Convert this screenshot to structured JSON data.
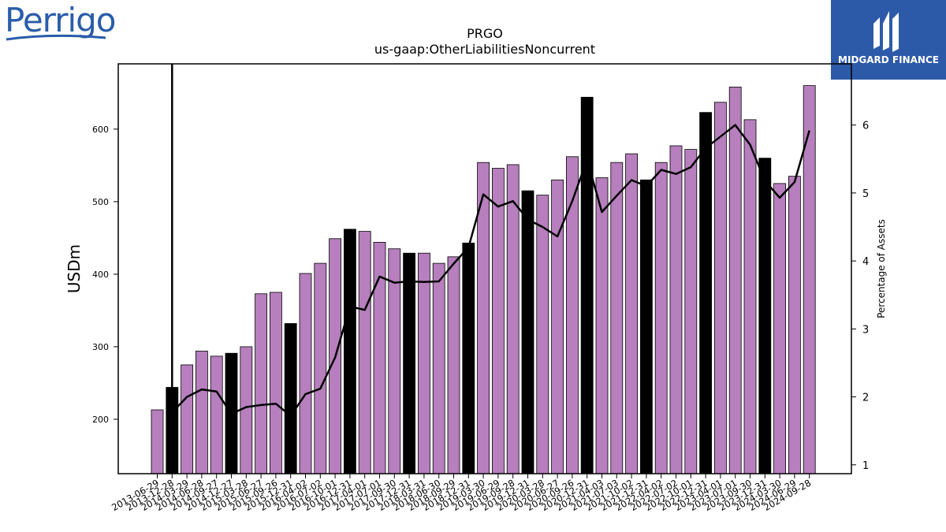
{
  "title_line1": "PRGO",
  "title_line2": "us-gaap:OtherLiabilitiesNoncurrent",
  "logo_left": "Perrigo",
  "logo_right": "MIDGARD FINANCE",
  "colors": {
    "bar": "#b77fbd",
    "bar_highlight": "#000000",
    "line": "#000000",
    "logo_left": "#2a5caa",
    "logo_right_bg": "#2d5aa8"
  },
  "chart_data": {
    "type": "bar",
    "ylabel": "USDm",
    "y2label": "Percentage of Assets",
    "ylim": [
      125,
      690
    ],
    "y2lim": [
      0.87,
      6.9
    ],
    "yticks": [
      200,
      300,
      400,
      500,
      600
    ],
    "y2ticks": [
      1,
      2,
      3,
      4,
      5,
      6
    ],
    "categories": [
      "2013-06-29",
      "2013-12-28",
      "2014-03-29",
      "2014-06-28",
      "2014-09-27",
      "2014-12-27",
      "2015-03-28",
      "2015-06-27",
      "2015-09-26",
      "2015-12-31",
      "2016-04-02",
      "2016-07-02",
      "2016-10-01",
      "2016-12-31",
      "2017-04-01",
      "2017-07-01",
      "2017-09-30",
      "2017-12-31",
      "2018-03-31",
      "2018-06-30",
      "2018-09-29",
      "2018-12-31",
      "2019-03-30",
      "2019-06-29",
      "2019-09-28",
      "2019-12-31",
      "2020-03-28",
      "2020-06-27",
      "2020-09-26",
      "2020-12-31",
      "2021-04-03",
      "2021-07-03",
      "2021-10-02",
      "2021-12-31",
      "2022-04-02",
      "2022-07-02",
      "2022-10-01",
      "2022-12-31",
      "2023-04-01",
      "2023-07-01",
      "2023-09-30",
      "2023-12-31",
      "2024-03-30",
      "2024-06-29",
      "2024-09-28"
    ],
    "series": [
      {
        "type": "bar",
        "values": [
          213,
          244,
          275,
          294,
          287,
          291,
          300,
          373,
          375,
          332,
          401,
          415,
          449,
          462,
          459,
          444,
          435,
          429,
          429,
          415,
          424,
          443,
          554,
          546,
          551,
          515,
          509,
          530,
          562,
          644,
          533,
          554,
          566,
          530,
          554,
          577,
          572,
          623,
          637,
          658,
          613,
          560,
          525,
          535,
          660
        ],
        "highlight": [
          false,
          true,
          false,
          false,
          false,
          true,
          false,
          false,
          false,
          true,
          false,
          false,
          false,
          true,
          false,
          false,
          false,
          true,
          false,
          false,
          false,
          true,
          false,
          false,
          false,
          true,
          false,
          false,
          false,
          true,
          false,
          false,
          false,
          true,
          false,
          false,
          false,
          true,
          false,
          false,
          false,
          true,
          false,
          false,
          false
        ]
      },
      {
        "type": "line",
        "axis": "right",
        "values": [
          null,
          1.77,
          2.0,
          2.11,
          2.08,
          1.75,
          1.85,
          1.88,
          1.9,
          1.72,
          2.04,
          2.12,
          2.58,
          3.33,
          3.28,
          3.77,
          3.68,
          3.7,
          3.69,
          3.7,
          3.96,
          4.2,
          4.98,
          4.8,
          4.88,
          4.61,
          4.5,
          4.36,
          4.88,
          5.49,
          4.72,
          4.96,
          5.19,
          5.1,
          5.34,
          5.28,
          5.38,
          5.66,
          5.83,
          6.0,
          5.71,
          5.18,
          4.93,
          5.16,
          5.92
        ]
      }
    ],
    "vline_category": "2013-12-28"
  }
}
